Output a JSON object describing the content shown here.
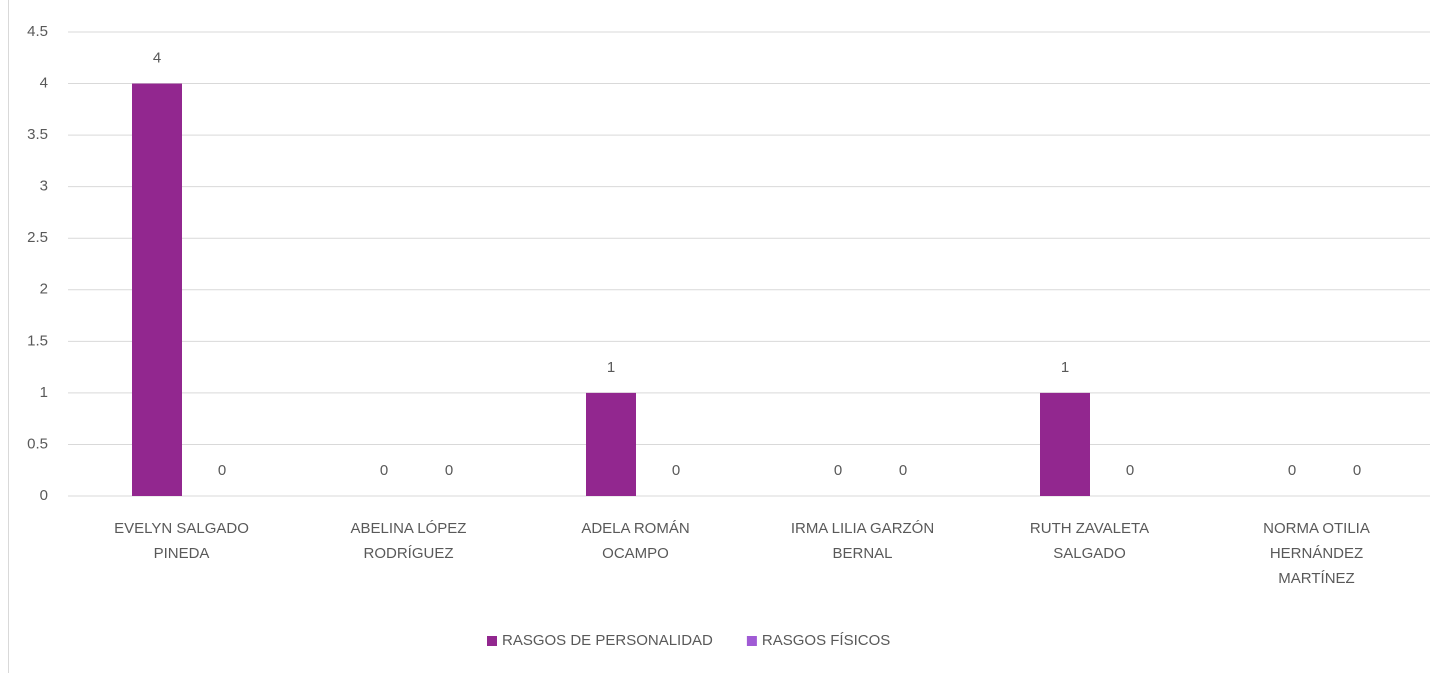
{
  "chart_data": {
    "type": "bar",
    "categories": [
      "EVELYN SALGADO PINEDA",
      "ABELINA LÓPEZ RODRÍGUEZ",
      "ADELA ROMÁN OCAMPO",
      "IRMA LILIA GARZÓN BERNAL",
      "RUTH ZAVALETA SALGADO",
      "NORMA OTILIA HERNÁNDEZ MARTÍNEZ"
    ],
    "series": [
      {
        "name": "RASGOS DE PERSONALIDAD",
        "color": "#92278f",
        "values": [
          4,
          0,
          1,
          0,
          1,
          0
        ]
      },
      {
        "name": "RASGOS FÍSICOS",
        "color": "#a05bd5",
        "values": [
          0,
          0,
          0,
          0,
          0,
          0
        ]
      }
    ],
    "ylim": [
      0,
      4.5
    ],
    "yticks": [
      0,
      0.5,
      1,
      1.5,
      2,
      2.5,
      3,
      3.5,
      4,
      4.5
    ],
    "grid": true,
    "legend": "bottom"
  }
}
